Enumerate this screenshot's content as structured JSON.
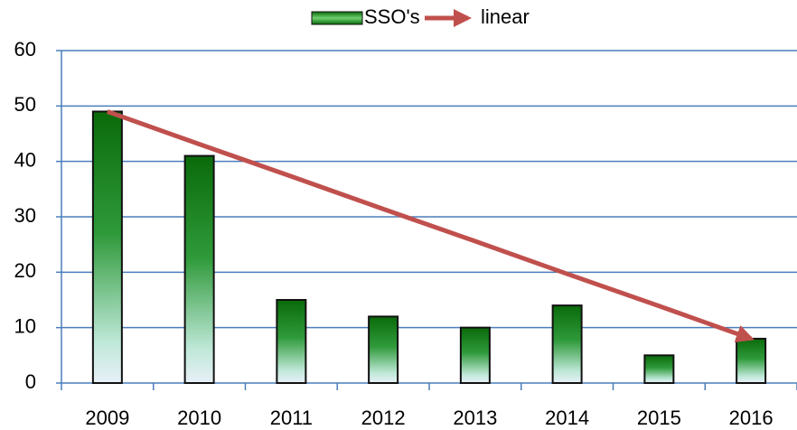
{
  "chart_data": {
    "type": "bar",
    "categories": [
      "2009",
      "2010",
      "2011",
      "2012",
      "2013",
      "2014",
      "2015",
      "2016"
    ],
    "series": [
      {
        "name": "SSO's",
        "type": "bar",
        "color": "#0a7a0a",
        "values": [
          49,
          41,
          15,
          12,
          10,
          14,
          5,
          8
        ]
      },
      {
        "name": "linear",
        "type": "line",
        "color": "#c0504d",
        "values": [
          49,
          43.1,
          37.3,
          31.4,
          25.6,
          19.7,
          13.9,
          8
        ]
      }
    ],
    "ylim": [
      0,
      60
    ],
    "yticks": [
      0,
      10,
      20,
      30,
      40,
      50,
      60
    ],
    "grid": true,
    "legend": "top"
  }
}
